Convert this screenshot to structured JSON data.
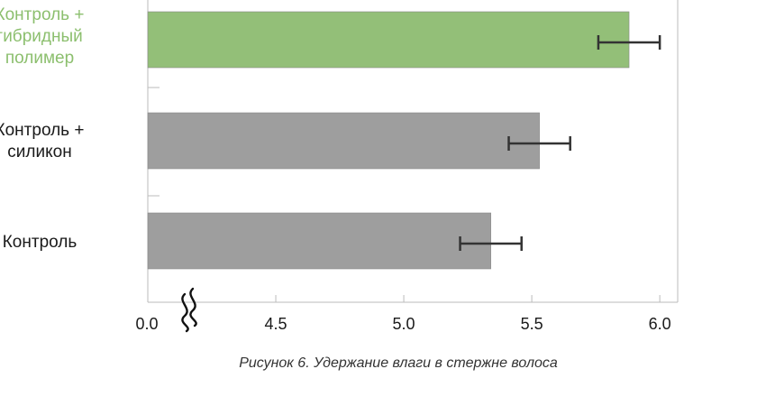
{
  "chart_data": {
    "type": "bar",
    "orientation": "horizontal",
    "categories": [
      "Контроль +\nгибридный\nполимер",
      "Контроль +\nсиликон",
      "Контроль"
    ],
    "values": [
      5.88,
      5.53,
      5.34
    ],
    "errors": [
      0.12,
      0.12,
      0.12
    ],
    "xticks": [
      "0.0",
      "4.5",
      "5.0",
      "5.5",
      "6.0"
    ],
    "axis_break": true,
    "xlim": [
      4.0,
      6.07
    ],
    "caption": "Рисунок 6. Удержание влаги в стержне волоса",
    "colors": {
      "highlight": "#93bf78",
      "default": "#9e9e9e",
      "highlight_label": "#8cbf6e",
      "error_bar": "#333333",
      "axis": "#bbbbbb"
    }
  }
}
